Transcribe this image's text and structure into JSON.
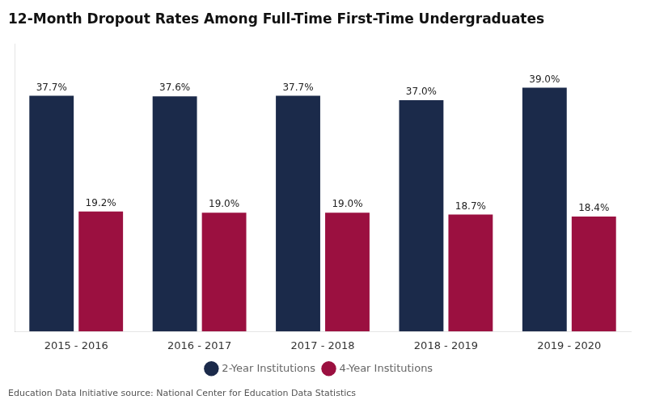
{
  "chart_data": {
    "type": "bar",
    "title": "12-Month Dropout Rates Among Full-Time First-Time Undergraduates",
    "footnote": "Education Data Initiative source: National Center for Education Data Statistics",
    "categories": [
      "2015 - 2016",
      "2016 - 2017",
      "2017 - 2018",
      "2018 - 2019",
      "2019 - 2020"
    ],
    "series": [
      {
        "name": "2-Year Institutions",
        "color": "#1b2a4a",
        "values": [
          37.7,
          37.6,
          37.7,
          37.0,
          39.0
        ],
        "value_labels": [
          "37.7%",
          "37.6%",
          "37.7%",
          "37.0%",
          "39.0%"
        ]
      },
      {
        "name": "4-Year Institutions",
        "color": "#9b1040",
        "values": [
          19.2,
          19.0,
          19.0,
          18.7,
          18.4
        ],
        "value_labels": [
          "19.2%",
          "19.0%",
          "19.0%",
          "18.7%",
          "18.4%"
        ]
      }
    ],
    "ylim": [
      0,
      46
    ],
    "grid": false,
    "legend": "bottom",
    "data_labels": true,
    "tick_labels": "x"
  }
}
